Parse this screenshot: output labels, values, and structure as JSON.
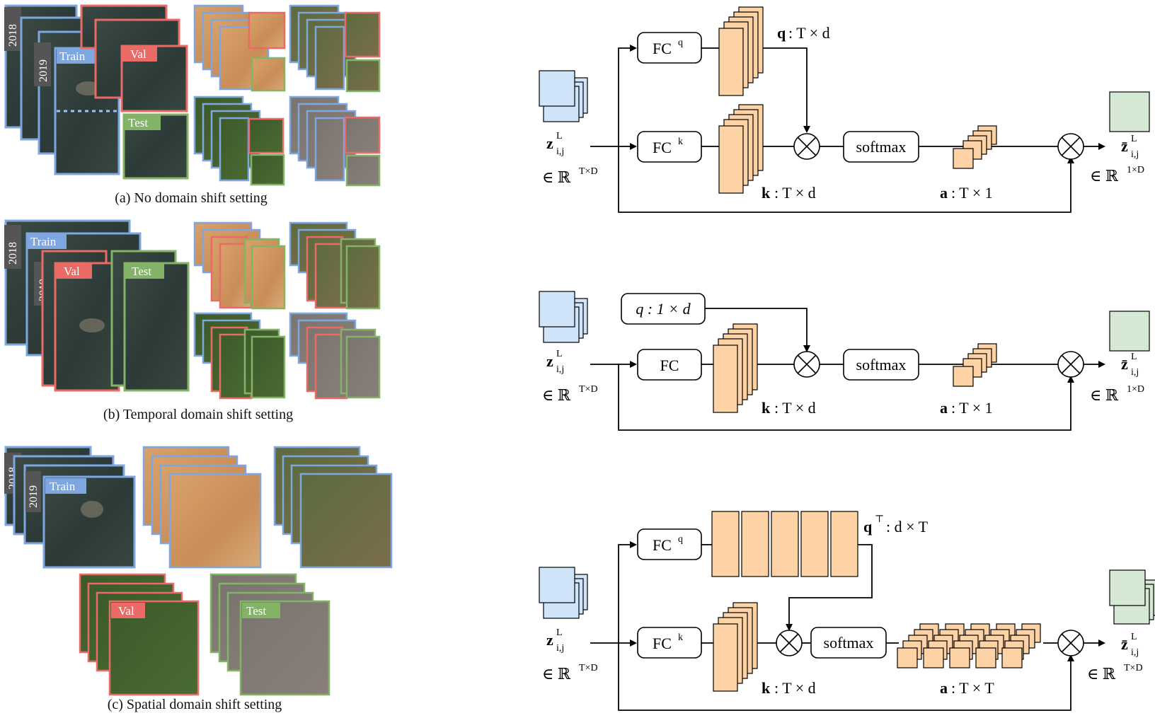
{
  "left_panel": {
    "captions": {
      "a": "(a) No domain shift setting",
      "b": "(b) Temporal domain shift setting",
      "c": "(c) Spatial domain shift setting"
    },
    "year_tags": [
      "2018",
      "2019"
    ],
    "split_tags": {
      "train": "Train",
      "val": "Val",
      "test": "Test"
    },
    "colors": {
      "train": "#7ea6e0",
      "val": "#ea6b66",
      "test": "#82b366"
    }
  },
  "diagram_top": {
    "fc_q": "FC",
    "fc_q_sup": "q",
    "fc_k": "FC",
    "fc_k_sup": "k",
    "softmax": "softmax",
    "q_label": "q",
    "q_dims": ": T × d",
    "k_label": "k",
    "k_dims": ": T × d",
    "a_label": "a",
    "a_dims": ": T × 1",
    "input_z": "z",
    "input_sub": "i,j",
    "input_sup": "L",
    "input_space": "∈ ℝ",
    "input_space_sup": "T×D",
    "output_z": "z̄",
    "output_sub": "i,j",
    "output_sup": "L",
    "output_space": "∈ ℝ",
    "output_space_sup": "1×D"
  },
  "diagram_mid": {
    "q_box": "q : 1 × d",
    "fc": "FC",
    "softmax": "softmax",
    "k_label": "k",
    "k_dims": ": T × d",
    "a_label": "a",
    "a_dims": ": T × 1",
    "input_z": "z",
    "input_sub": "i,j",
    "input_sup": "L",
    "input_space": "∈ ℝ",
    "input_space_sup": "T×D",
    "output_z": "z̄",
    "output_sub": "i,j",
    "output_sup": "L",
    "output_space": "∈ ℝ",
    "output_space_sup": "1×D"
  },
  "diagram_bot": {
    "fc_q": "FC",
    "fc_q_sup": "q",
    "fc_k": "FC",
    "fc_k_sup": "k",
    "softmax": "softmax",
    "qt_label": "q",
    "qt_sup": "⊤",
    "qt_dims": ": d × T",
    "k_label": "k",
    "k_dims": ": T × d",
    "a_label": "a",
    "a_dims": ": T × T",
    "input_z": "z",
    "input_sub": "i,j",
    "input_sup": "L",
    "input_space": "∈ ℝ",
    "input_space_sup": "T×D",
    "output_z": "z̄",
    "output_sub": "i,j",
    "output_sup": "L",
    "output_space": "∈ ℝ",
    "output_space_sup": "T×D"
  }
}
